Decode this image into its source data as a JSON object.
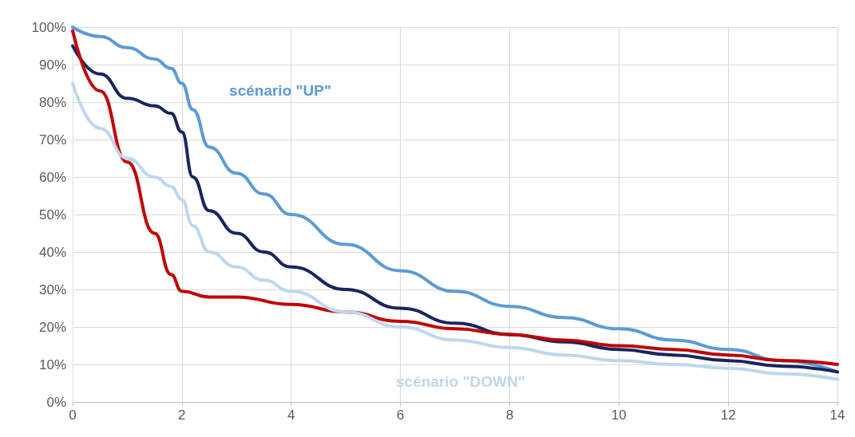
{
  "chart_data": {
    "type": "line",
    "xlim": [
      0,
      14
    ],
    "xticks": [
      0,
      2,
      4,
      6,
      8,
      10,
      12,
      14
    ],
    "ylim": [
      0,
      100
    ],
    "yticks": [
      {
        "value": 0,
        "label": "0%"
      },
      {
        "value": 10,
        "label": "10%"
      },
      {
        "value": 20,
        "label": "20%"
      },
      {
        "value": 30,
        "label": "30%"
      },
      {
        "value": 40,
        "label": "40%"
      },
      {
        "value": 50,
        "label": "50%"
      },
      {
        "value": 60,
        "label": "60%"
      },
      {
        "value": 70,
        "label": "70%"
      },
      {
        "value": 80,
        "label": "80%"
      },
      {
        "value": 90,
        "label": "90%"
      },
      {
        "value": 100,
        "label": "100%"
      }
    ],
    "grid": true,
    "legend": false,
    "marker": "none",
    "line_style": "solid",
    "series": [
      {
        "name": "scénario \"UP\"",
        "color": "#5b9bd5",
        "x": [
          0,
          0.5,
          1,
          1.5,
          1.8,
          2,
          2.2,
          2.5,
          3,
          3.5,
          4,
          5,
          6,
          7,
          8,
          9,
          10,
          11,
          12,
          13,
          14
        ],
        "values": [
          100,
          97.5,
          94.5,
          91.5,
          89,
          85,
          78,
          68,
          61,
          55.5,
          50,
          42,
          35,
          29.5,
          25.5,
          22.5,
          19.5,
          16.5,
          14,
          11,
          8
        ]
      },
      {
        "color": "#162660",
        "x": [
          0,
          0.5,
          1,
          1.5,
          1.8,
          2,
          2.2,
          2.5,
          3,
          3.5,
          4,
          5,
          6,
          7,
          8,
          9,
          10,
          11,
          12,
          13,
          14
        ],
        "values": [
          95,
          87.5,
          81,
          79,
          77,
          72,
          60,
          51,
          45,
          40,
          36,
          30,
          25,
          21,
          18,
          16,
          14,
          12.5,
          11,
          9.5,
          8
        ]
      },
      {
        "color": "#c00000",
        "x": [
          0,
          0.5,
          1,
          1.5,
          1.8,
          2,
          2.5,
          3,
          4,
          5,
          6,
          7,
          8,
          9,
          10,
          11,
          12,
          13,
          14
        ],
        "values": [
          99,
          83,
          64,
          45,
          34,
          29.5,
          28,
          28,
          26,
          24,
          21.5,
          19.5,
          18,
          16.5,
          15,
          14,
          12.5,
          11,
          10
        ]
      },
      {
        "name": "scénario \"DOWN\"",
        "color": "#bdd7ee",
        "x": [
          0,
          0.5,
          1,
          1.5,
          1.8,
          2,
          2.2,
          2.5,
          3,
          3.5,
          4,
          5,
          6,
          7,
          8,
          9,
          10,
          11,
          12,
          13,
          14
        ],
        "values": [
          85,
          73,
          65,
          60,
          57.5,
          54,
          47,
          40,
          36,
          32.5,
          29.5,
          24,
          20,
          16.5,
          14.5,
          12.5,
          11,
          10,
          9,
          7.5,
          6
        ]
      }
    ]
  }
}
